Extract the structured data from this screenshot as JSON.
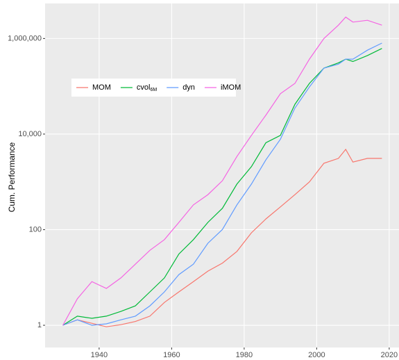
{
  "chart_data": {
    "type": "line",
    "y_label": "Cum. Performance",
    "log_y": true,
    "grid": true,
    "legend_position": "top-left",
    "x": [
      1930,
      1934,
      1938,
      1942,
      1946,
      1950,
      1954,
      1958,
      1962,
      1966,
      1970,
      1974,
      1978,
      1982,
      1986,
      1990,
      1994,
      1998,
      2002,
      2006,
      2008,
      2010,
      2014,
      2018
    ],
    "series": [
      {
        "name": "MOM",
        "color": "#F8766D",
        "values": [
          1,
          1.3,
          1.1,
          0.93,
          1.03,
          1.2,
          1.55,
          3,
          5,
          8.2,
          13.6,
          20,
          35,
          86,
          168,
          300,
          540,
          1000,
          2450,
          3100,
          4800,
          2600,
          3100,
          3100
        ]
      },
      {
        "name": "cvol",
        "subscript": "6M",
        "color": "#00BA38",
        "values": [
          1,
          1.55,
          1.4,
          1.55,
          1.95,
          2.55,
          5,
          9.8,
          31,
          62,
          142,
          280,
          900,
          2080,
          6600,
          9400,
          42000,
          115000,
          240000,
          310000,
          370000,
          330000,
          440000,
          620000
        ]
      },
      {
        "name": "dyn",
        "color": "#619CFF",
        "values": [
          1,
          1.3,
          1,
          1.07,
          1.3,
          1.55,
          2.55,
          5,
          11.5,
          19,
          52,
          101,
          330,
          900,
          2900,
          7800,
          35000,
          97000,
          240000,
          290000,
          370000,
          370000,
          570000,
          800000
        ]
      },
      {
        "name": "iMOM",
        "color": "#F564E3",
        "values": [
          1,
          3.6,
          8.2,
          5.9,
          9.8,
          19,
          37,
          62,
          142,
          330,
          540,
          1060,
          3400,
          9400,
          25000,
          70000,
          115000,
          370000,
          1000000,
          1900000,
          2800000,
          2200000,
          2400000,
          1900000
        ]
      }
    ],
    "xlim": [
      1925.1,
      2022.7
    ],
    "xticks": [
      1940,
      1960,
      1980,
      2000,
      2020
    ],
    "ylim": [
      0.343,
      5400000
    ],
    "yticks": [
      1,
      100,
      {
        "value": 10000,
        "label": "10,000"
      },
      {
        "value": 1000000,
        "label": "1,000,000"
      }
    ]
  }
}
